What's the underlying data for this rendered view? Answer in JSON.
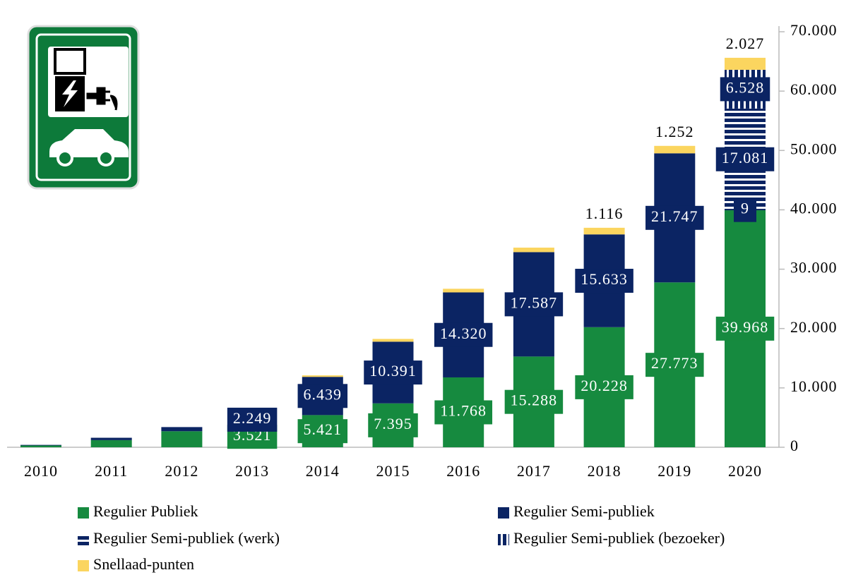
{
  "chart_data": {
    "type": "stacked_bar",
    "categories": [
      "2010",
      "2011",
      "2012",
      "2013",
      "2014",
      "2015",
      "2016",
      "2017",
      "2018",
      "2019",
      "2020"
    ],
    "series": [
      {
        "name": "Regulier Publiek",
        "color": "#168a3f",
        "pattern": "solid",
        "values": [
          300,
          1200,
          2700,
          3521,
          5421,
          7395,
          11768,
          15288,
          20228,
          27773,
          39968
        ],
        "value_labels": [
          null,
          null,
          null,
          "3.521",
          "5.421",
          "7.395",
          "11.768",
          "15.288",
          "20.228",
          "27.773",
          "39.968"
        ]
      },
      {
        "name": "Regulier Semi-publiek",
        "color": "#0b2463",
        "pattern": "solid",
        "values": [
          100,
          400,
          700,
          2249,
          6439,
          10391,
          14320,
          17587,
          15633,
          21747,
          9
        ],
        "value_labels": [
          null,
          null,
          null,
          "2.249",
          "6.439",
          "10.391",
          "14.320",
          "17.587",
          "15.633",
          "21.747",
          "9"
        ]
      },
      {
        "name": "Regulier Semi-publiek (werk)",
        "color": "#0b2463",
        "pattern": "horizontal",
        "values": [
          null,
          null,
          null,
          null,
          null,
          null,
          null,
          null,
          null,
          null,
          17081
        ],
        "value_labels": [
          null,
          null,
          null,
          null,
          null,
          null,
          null,
          null,
          null,
          null,
          "17.081"
        ]
      },
      {
        "name": "Regulier Semi-publiek (bezoeker)",
        "color": "#0b2463",
        "pattern": "vertical",
        "values": [
          null,
          null,
          null,
          null,
          null,
          null,
          null,
          null,
          null,
          null,
          6528
        ],
        "value_labels": [
          null,
          null,
          null,
          null,
          null,
          null,
          null,
          null,
          null,
          null,
          "6.528"
        ]
      },
      {
        "name": "Snellaad-punten",
        "color": "#fbd55f",
        "pattern": "solid",
        "values": [
          null,
          null,
          null,
          106,
          254,
          465,
          612,
          755,
          1116,
          1252,
          2027
        ],
        "value_labels": [
          null,
          null,
          null,
          null,
          null,
          null,
          null,
          null,
          "1.116",
          "1.252",
          "2.027"
        ]
      }
    ],
    "ylim": [
      0,
      70000
    ],
    "yticks": [
      0,
      {
        "value": 10000,
        "label": "10.000"
      },
      {
        "value": 20000,
        "label": "20.000"
      },
      {
        "value": 30000,
        "label": "30.000"
      },
      {
        "value": 40000,
        "label": "40.000"
      },
      {
        "value": 50000,
        "label": "50.000"
      },
      {
        "value": 60000,
        "label": "60.000"
      },
      {
        "value": 70000,
        "label": "70.000"
      }
    ],
    "y_axis_side": "right",
    "grid": false
  }
}
